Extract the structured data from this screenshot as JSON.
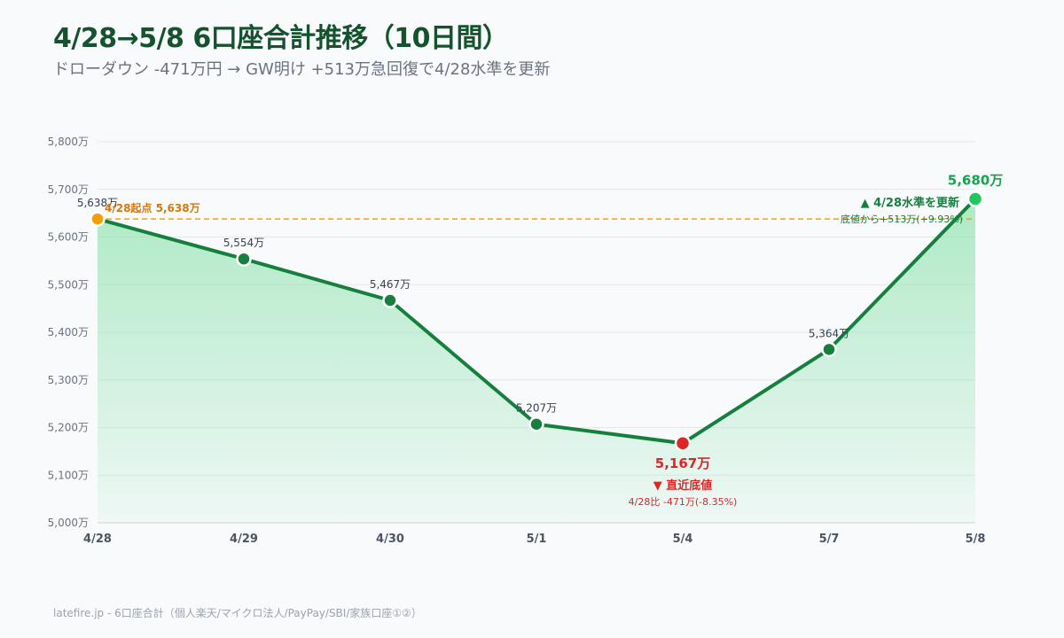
{
  "title": "4/28→5/8 6口座合計推移（10日間）",
  "subtitle": "ドローダウン -471万円 → GW明け +513万急回復で4/28水準を更新",
  "footer": "latefire.jp - 6口座合計（個人楽天/マイクロ法人/PayPay/SBI/家族口座①②）",
  "colors": {
    "line": "#15803d",
    "point": "#15803d",
    "start": "#f59e0b",
    "low": "#dc2626",
    "high": "#22c55e",
    "fill_top": "#86e0a8",
    "refline": "#f59e0b",
    "grid": "#e5e7eb"
  },
  "chart_data": {
    "type": "line",
    "categories": [
      "4/28",
      "4/29",
      "4/30",
      "5/1",
      "5/4",
      "5/7",
      "5/8"
    ],
    "values": [
      5638,
      5554,
      5467,
      5207,
      5167,
      5364,
      5680
    ],
    "value_labels": [
      "5,638万",
      "5,554万",
      "5,467万",
      "5,207万",
      "5,167万",
      "5,364万",
      "5,680万"
    ],
    "ylim": [
      5000,
      5800
    ],
    "yticks": [
      5000,
      5100,
      5200,
      5300,
      5400,
      5500,
      5600,
      5700,
      5800
    ],
    "ytick_labels": [
      "5,000万",
      "5,100万",
      "5,200万",
      "5,300万",
      "5,400万",
      "5,500万",
      "5,600万",
      "5,700万",
      "5,800万"
    ],
    "reference_line": {
      "value": 5638,
      "label": "4/28起点 5,638万"
    },
    "annotations": {
      "low_title": "▼ 直近底値",
      "low_detail": "4/28比 -471万(-8.35%)",
      "high_title": "▲ 4/28水準を更新",
      "high_detail": "底値から+513万(+9.93%)"
    },
    "grid": true
  }
}
